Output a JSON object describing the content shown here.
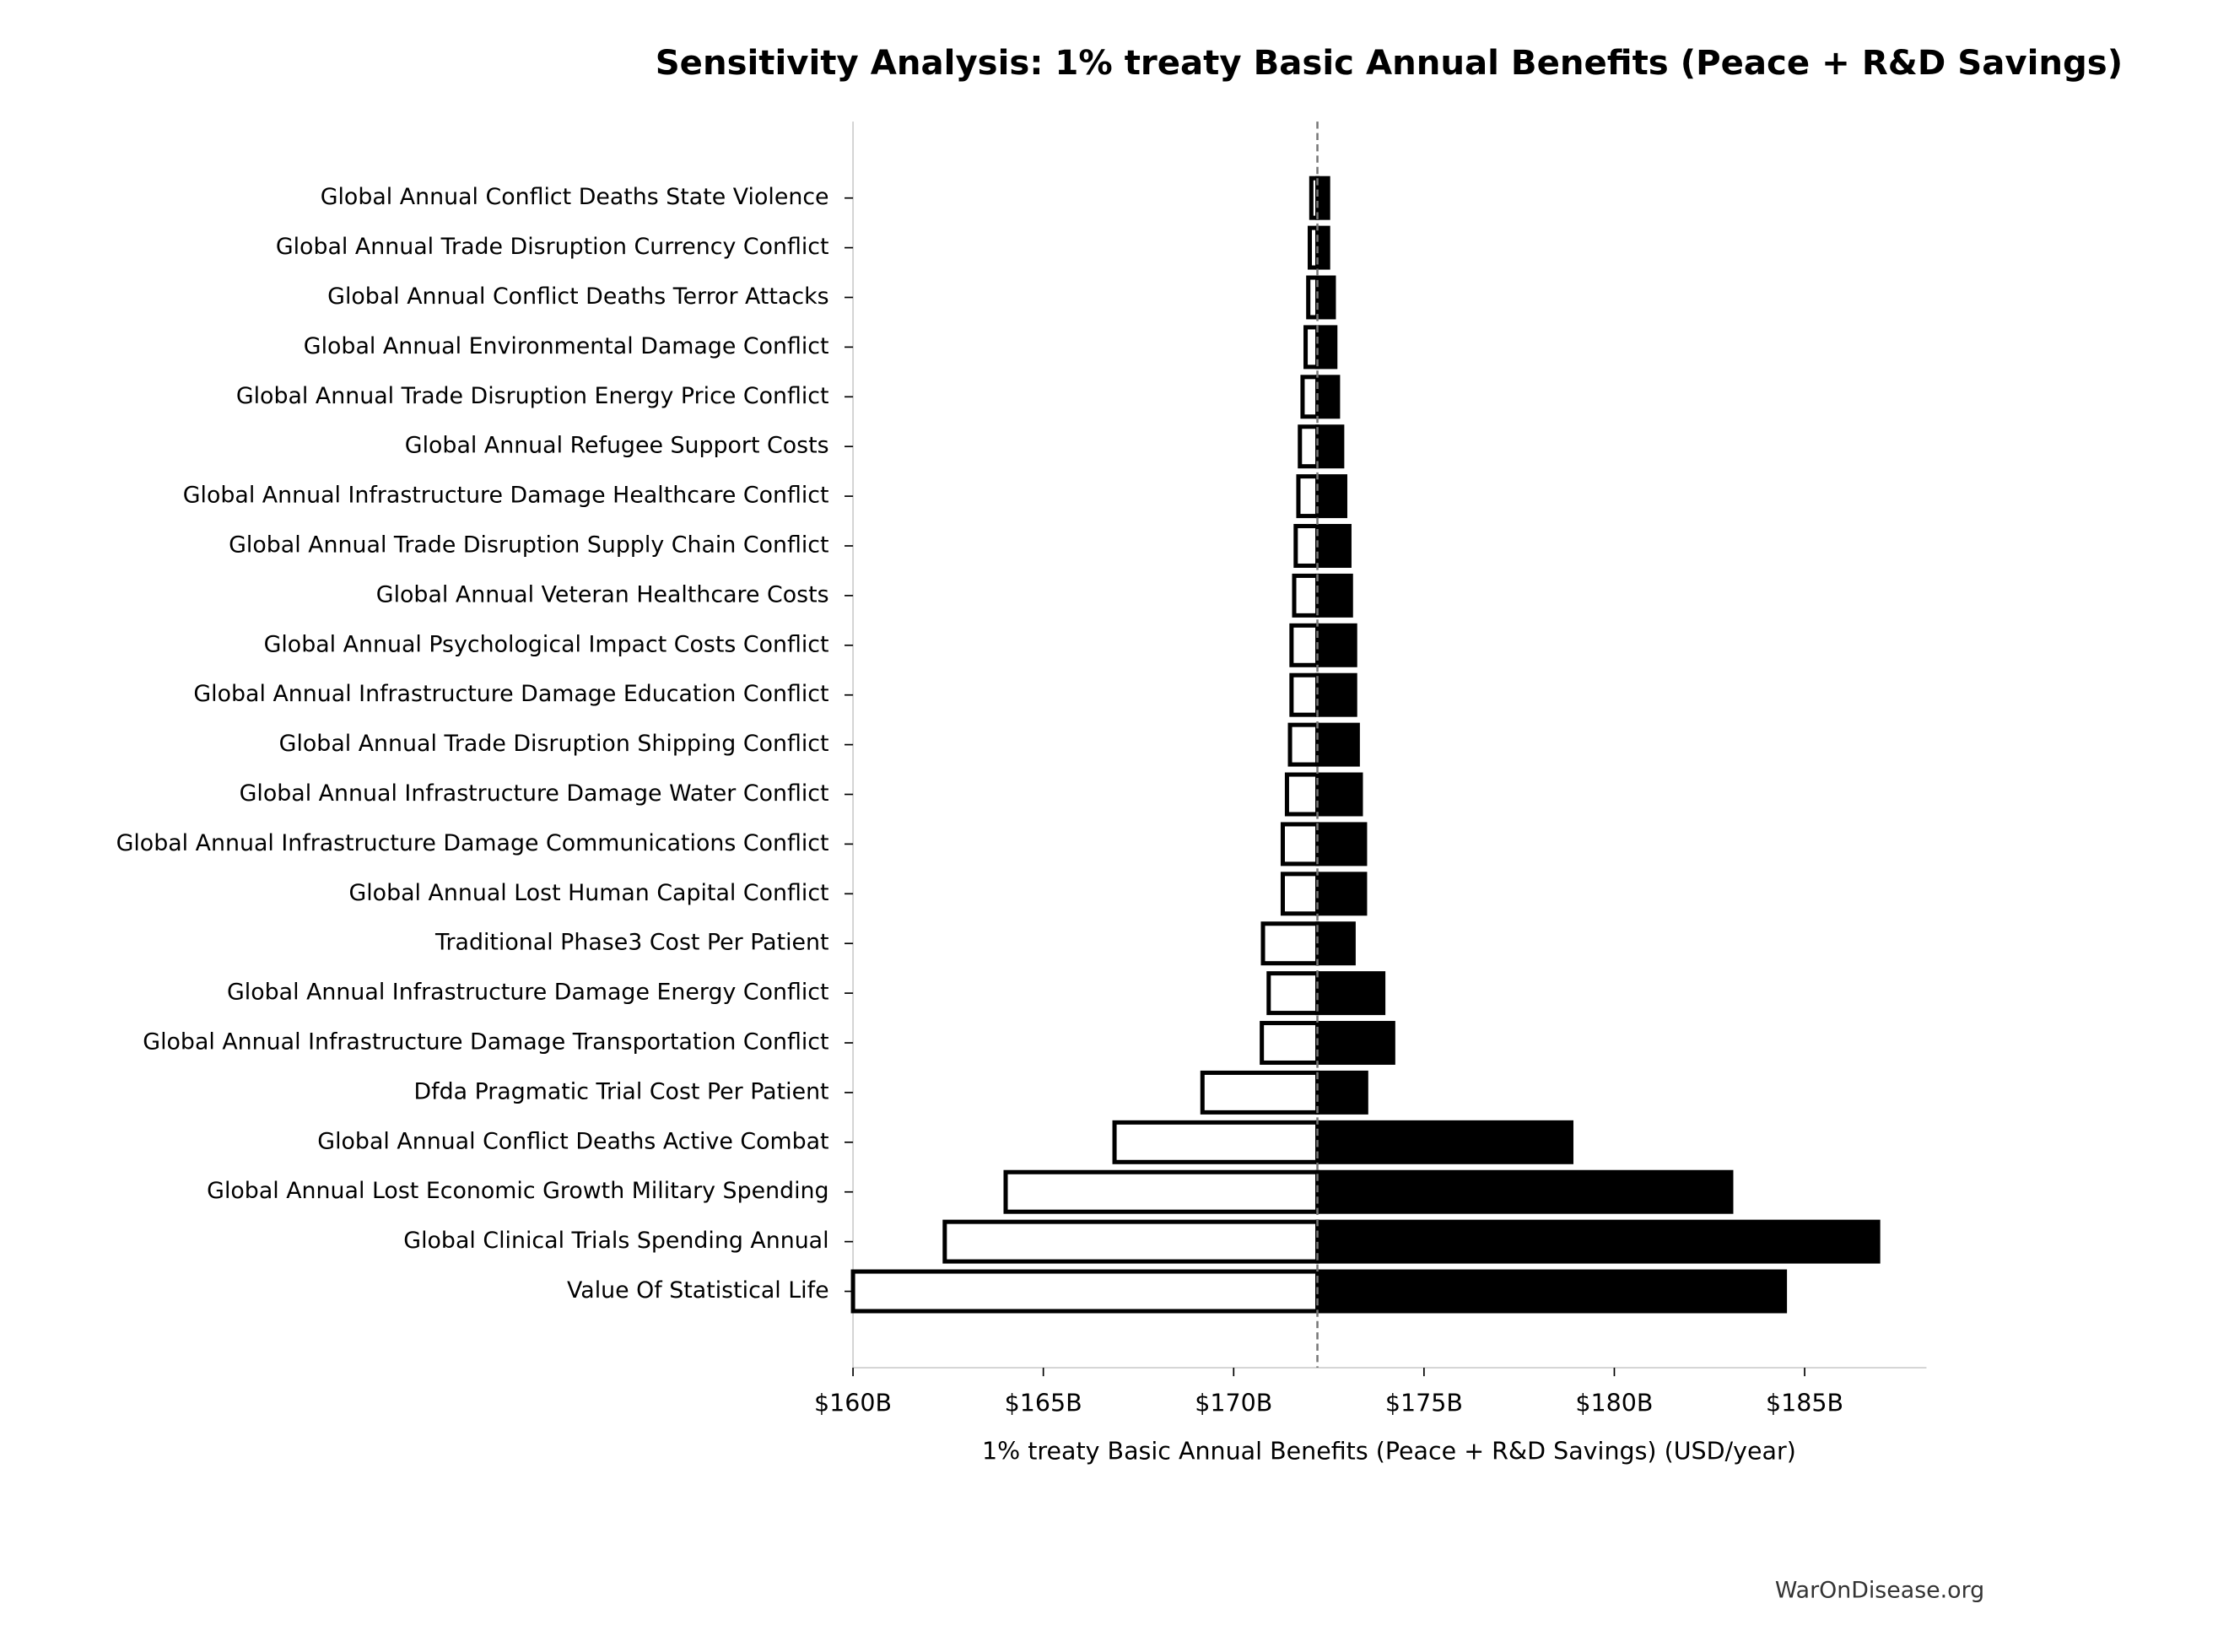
{
  "chart_data": {
    "type": "tornado",
    "title": "Sensitivity Analysis: 1% treaty Basic Annual Benefits (Peace + R&D Savings)",
    "x_label": "1% treaty Basic Annual Benefits (Peace + R&D Savings) (USD/year)",
    "watermark": "WarOnDisease.org",
    "categories": [
      "Global Annual Conflict Deaths State Violence",
      "Global Annual Trade Disruption Currency Conflict",
      "Global Annual Conflict Deaths Terror Attacks",
      "Global Annual Environmental Damage Conflict",
      "Global Annual Trade Disruption Energy Price Conflict",
      "Global Annual Refugee Support Costs",
      "Global Annual Infrastructure Damage Healthcare Conflict",
      "Global Annual Trade Disruption Supply Chain Conflict",
      "Global Annual Veteran Healthcare Costs",
      "Global Annual Psychological Impact Costs Conflict",
      "Global Annual Infrastructure Damage Education Conflict",
      "Global Annual Trade Disruption Shipping Conflict",
      "Global Annual Infrastructure Damage Water Conflict",
      "Global Annual Infrastructure Damage Communications Conflict",
      "Global Annual Lost Human Capital Conflict",
      "Traditional Phase3 Cost Per Patient",
      "Global Annual Infrastructure Damage Energy Conflict",
      "Global Annual Infrastructure Damage Transportation Conflict",
      "Dfda Pragmatic Trial Cost Per Patient",
      "Global Annual Conflict Deaths Active Combat",
      "Global Annual Lost Economic Growth Military Spending",
      "Global Clinical Trials Spending Annual",
      "Value Of Statistical Life"
    ],
    "low_values": [
      172.04,
      172.0,
      171.96,
      171.89,
      171.81,
      171.74,
      171.7,
      171.63,
      171.59,
      171.52,
      171.52,
      171.48,
      171.4,
      171.29,
      171.29,
      170.77,
      170.92,
      170.74,
      169.18,
      166.87,
      164.01,
      162.41,
      160.0
    ],
    "high_values": [
      172.48,
      172.48,
      172.63,
      172.67,
      172.74,
      172.85,
      172.93,
      173.04,
      173.08,
      173.19,
      173.19,
      173.26,
      173.34,
      173.45,
      173.45,
      173.15,
      173.93,
      174.19,
      173.48,
      178.87,
      183.07,
      186.93,
      184.48
    ],
    "baseline": 172.2,
    "low_color": "#ffffff",
    "high_color": "#000000",
    "xlim": [
      160,
      188.2
    ],
    "xticks": [
      {
        "value": 160,
        "label": "$160B"
      },
      {
        "value": 165,
        "label": "$165B"
      },
      {
        "value": 170,
        "label": "$170B"
      },
      {
        "value": 175,
        "label": "$175B"
      },
      {
        "value": 180,
        "label": "$180B"
      },
      {
        "value": 185,
        "label": "$185B"
      }
    ]
  }
}
